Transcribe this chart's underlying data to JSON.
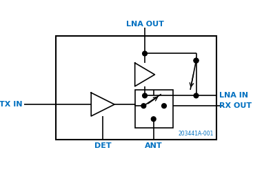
{
  "bg_color": "#ffffff",
  "border_color": "#000000",
  "label_color": "#0070c0",
  "line_color": "#000000",
  "dot_color": "#000000",
  "ref_color": "#0070c0",
  "labels": {
    "lna_out": "LNA OUT",
    "lna_in": "LNA IN",
    "tx_in": "TX IN",
    "rx_out": "RX OUT",
    "det": "DET",
    "ant": "ANT",
    "ref": "203441A-001"
  }
}
